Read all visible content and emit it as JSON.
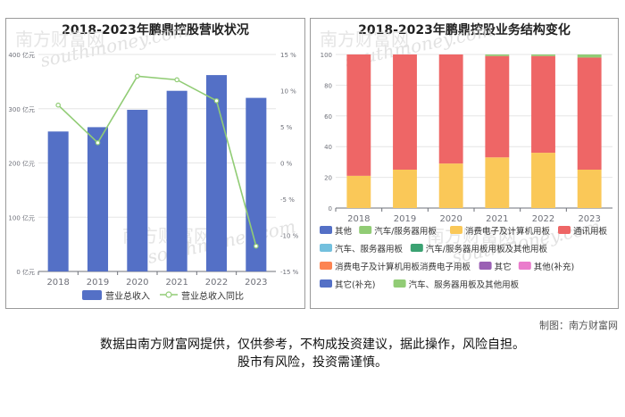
{
  "credit": "制图：南方财富网",
  "disclaimer": {
    "line1": "数据由南方财富网提供，仅供参考，不构成投资建议，据此操作，风险自担。",
    "line2": "股市有风险，投资需谨慎。"
  },
  "watermark": {
    "cn": "南方财富网",
    "en": "southmoney.com"
  },
  "colors": {
    "bar": "#5470c6",
    "line": "#91cc75",
    "axis": "#6e7079",
    "grid": "#e6e6e6"
  },
  "chart_data": [
    {
      "type": "bar",
      "title": "2018-2023年鹏鼎控股营收状况",
      "categories": [
        "2018",
        "2019",
        "2020",
        "2021",
        "2022",
        "2023"
      ],
      "y_left": {
        "ticks": [
          "0 亿元",
          "100 亿元",
          "200 亿元",
          "300 亿元",
          "400 亿元"
        ],
        "min": 0,
        "max": 400
      },
      "y_right": {
        "ticks": [
          "-15 %",
          "-10 %",
          "-5 %",
          "0 %",
          "5 %",
          "10 %",
          "15 %"
        ],
        "min": -15,
        "max": 15
      },
      "series": [
        {
          "name": "营业总收入",
          "type": "bar",
          "axis": "left",
          "values": [
            258,
            266,
            298,
            333,
            362,
            320
          ]
        },
        {
          "name": "营业总收入同比",
          "type": "line",
          "axis": "right",
          "values": [
            8.0,
            2.8,
            12.0,
            11.5,
            8.6,
            -11.5
          ]
        }
      ],
      "legend_position": "bottom"
    },
    {
      "type": "bar",
      "stacked": true,
      "title": "2018-2023年鹏鼎控股业务结构变化",
      "categories": [
        "2018",
        "2019",
        "2020",
        "2021",
        "2022",
        "2023"
      ],
      "y": {
        "ticks": [
          "0",
          "20",
          "40",
          "60",
          "80",
          "100"
        ],
        "min": 0,
        "max": 100
      },
      "series": [
        {
          "name": "消费电子及计算机用板",
          "color": "#fac858",
          "values": [
            21,
            25,
            29,
            33,
            36,
            25
          ]
        },
        {
          "name": "通讯用板",
          "color": "#ee6666",
          "values": [
            79,
            75,
            71,
            66,
            63,
            73
          ]
        },
        {
          "name": "汽车、服务器用板",
          "color": "#73c0de",
          "values": [
            0,
            0,
            0,
            0,
            0,
            0
          ]
        },
        {
          "name": "汽车/服务器用板",
          "color": "#91cc75",
          "values": [
            0,
            0,
            0,
            1,
            1,
            0
          ]
        },
        {
          "name": "汽车、服务器用板及其他用板",
          "color": "#91cc75",
          "values": [
            0,
            0,
            0,
            0,
            0,
            2
          ]
        },
        {
          "name": "其他",
          "color": "#5470c6",
          "values": [
            0,
            0,
            0,
            0,
            0,
            0
          ]
        }
      ],
      "legend": [
        {
          "name": "其他",
          "color": "#5470c6"
        },
        {
          "name": "汽车/服务器用板",
          "color": "#91cc75"
        },
        {
          "name": "消费电子及计算机用板",
          "color": "#fac858"
        },
        {
          "name": "通讯用板",
          "color": "#ee6666"
        },
        {
          "name": "汽车、服务器用板",
          "color": "#73c0de"
        },
        {
          "name": "汽车/服务器用板用板及其他用板",
          "color": "#3ba272"
        },
        {
          "name": "消费电子及计算机用板消费电子用板",
          "color": "#fc8452"
        },
        {
          "name": "其它",
          "color": "#9a60b4"
        },
        {
          "name": "其他(补充)",
          "color": "#ea7ccc"
        },
        {
          "name": "其它(补充)",
          "color": "#5470c6"
        },
        {
          "name": "汽车、服务器用板及其他用板",
          "color": "#91cc75"
        }
      ],
      "legend_position": "bottom"
    }
  ]
}
